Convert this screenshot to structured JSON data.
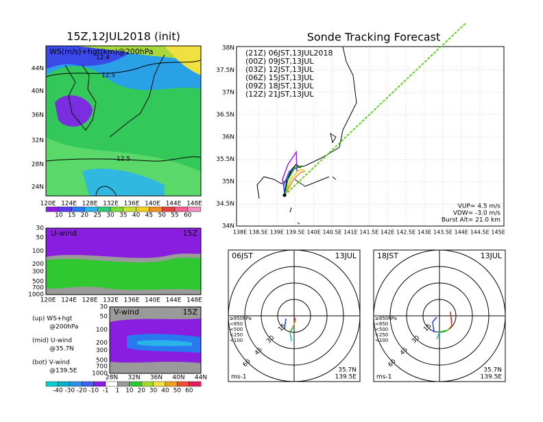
{
  "left_panel": {
    "title": "15Z,12JUL2018 (init)",
    "map": {
      "label": "WS(m/s)+hgt(km)@200hPa",
      "contour_labels": [
        "12.4",
        "12.5",
        "12.5"
      ],
      "lat_labels": [
        "44N",
        "40N",
        "36N",
        "32N",
        "28N",
        "24N"
      ],
      "lon_labels": [
        "120E",
        "124E",
        "128E",
        "132E",
        "136E",
        "140E",
        "144E",
        "148E"
      ]
    },
    "colorbar": [
      10,
      15,
      20,
      25,
      30,
      35,
      40,
      45,
      50,
      55,
      60
    ],
    "u_wind": {
      "label": "U-wind",
      "time": "15Z",
      "levels": [
        30,
        50,
        100,
        200,
        300,
        500,
        700,
        1000
      ],
      "lon_labels": [
        "120E",
        "124E",
        "128E",
        "132E",
        "136E",
        "140E",
        "144E",
        "148E"
      ]
    },
    "v_wind": {
      "label": "V-wind",
      "time": "15Z",
      "levels": [
        30,
        50,
        100,
        200,
        300,
        500,
        700,
        1000
      ],
      "lat_labels": [
        "28N",
        "32N",
        "36N",
        "40N",
        "44N"
      ]
    },
    "notes": [
      [
        "(up) WS+hgt",
        "@200hPa"
      ],
      [
        "(mid) U-wind",
        "@35.7N"
      ],
      [
        "(bot) V-wind",
        "@139.5E"
      ]
    ],
    "colorbar2": [
      -40,
      -30,
      -20,
      -10,
      -1,
      1,
      10,
      20,
      30,
      40,
      50,
      60
    ]
  },
  "track": {
    "title": "Sonde Tracking Forecast",
    "legend": [
      {
        "text": "(21Z) 06JST,13JUL2018",
        "color": "#000000"
      },
      {
        "text": "(00Z) 09JST,13JUL",
        "color": "#a020f0"
      },
      {
        "text": "(03Z) 12JST,13JUL",
        "color": "#1e3cff"
      },
      {
        "text": "(06Z) 15JST,13JUL",
        "color": "#00c000"
      },
      {
        "text": "(09Z) 18JST,13JUL",
        "color": "#e6c800"
      },
      {
        "text": "(12Z) 21JST,13JUL",
        "color": "#f08228"
      }
    ],
    "lat_labels": [
      "38N",
      "37.5N",
      "37N",
      "36.5N",
      "36N",
      "35.5N",
      "35N",
      "34.5N",
      "34N"
    ],
    "lon_labels": [
      "138E",
      "138.5E",
      "139E",
      "139.5E",
      "140E",
      "140.5E",
      "141E",
      "141.5E",
      "142E",
      "142.5E",
      "143E",
      "143.5E",
      "144E",
      "144.5E",
      "145E"
    ],
    "info": [
      "VUP= 4.5 m/s",
      "VDW= -3.0 m/s",
      "Burst Alt= 21.0 km"
    ]
  },
  "hodographs": [
    {
      "time": "06JST",
      "date": "13JUL",
      "lat": "35.7N",
      "lon": "139.5E",
      "unit": "ms-1",
      "rings": [
        "15",
        "30",
        "45",
        "60"
      ],
      "levels": [
        "≥850hPa",
        "<850",
        "<500",
        "<250",
        "<100"
      ]
    },
    {
      "time": "18JST",
      "date": "13JUL",
      "lat": "35.7N",
      "lon": "139.5E",
      "unit": "ms-1",
      "rings": [
        "15",
        "30",
        "45",
        "60"
      ],
      "levels": [
        "≥850hPa",
        "<850",
        "<500",
        "<250",
        "<100"
      ]
    }
  ]
}
